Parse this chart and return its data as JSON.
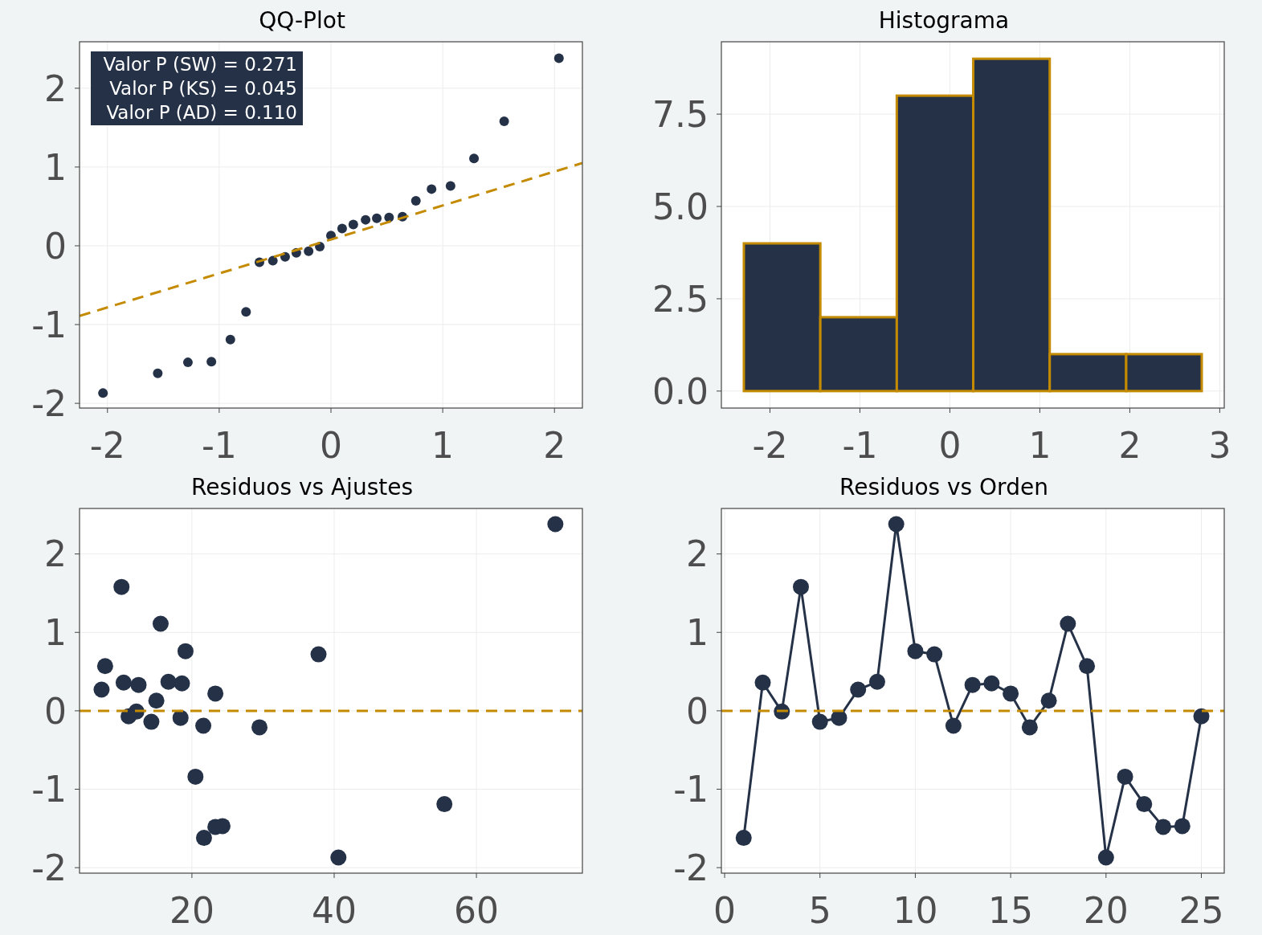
{
  "chart_data": [
    {
      "type": "scatter",
      "title": "QQ-Plot",
      "xlim": [
        -2.25,
        2.25
      ],
      "ylim": [
        -2.06,
        2.59
      ],
      "xticks": [
        -2,
        -1,
        0,
        1,
        2
      ],
      "yticks": [
        -2,
        -1,
        0,
        1,
        2
      ],
      "grid": true,
      "annotations": [
        "Valor P (SW) = 0.271",
        "Valor P (KS) = 0.045",
        "Valor P (AD) = 0.110"
      ],
      "series": [
        {
          "type": "scatter",
          "color": "#243147",
          "marker": "circle",
          "x": [
            -2.04,
            -1.55,
            -1.28,
            -1.07,
            -0.9,
            -0.76,
            -0.64,
            -0.52,
            -0.41,
            -0.31,
            -0.2,
            -0.1,
            0,
            0.1,
            0.2,
            0.31,
            0.41,
            0.52,
            0.64,
            0.76,
            0.9,
            1.07,
            1.28,
            1.55,
            2.04
          ],
          "values": [
            -1.87,
            -1.62,
            -1.48,
            -1.47,
            -1.19,
            -0.84,
            -0.21,
            -0.19,
            -0.14,
            -0.09,
            -0.07,
            -0.01,
            0.13,
            0.22,
            0.27,
            0.33,
            0.35,
            0.36,
            0.37,
            0.57,
            0.72,
            0.76,
            1.11,
            1.58,
            2.38
          ]
        },
        {
          "type": "line",
          "color": "#c48a00",
          "marker": "none",
          "line_style": "dashed",
          "x": [
            -2.25,
            2.25
          ],
          "values": [
            -0.89,
            1.05
          ]
        }
      ]
    },
    {
      "type": "histogram",
      "title": "Histograma",
      "xlim": [
        -2.54,
        3.05
      ],
      "ylim": [
        -0.46,
        9.46
      ],
      "xticks": [
        -2,
        -1,
        0,
        1,
        2,
        3
      ],
      "yticks": [
        {
          "value": 0,
          "label": "0.0"
        },
        {
          "value": 2.5,
          "label": "2.5"
        },
        {
          "value": 5,
          "label": "5.0"
        },
        {
          "value": 7.5,
          "label": "7.5"
        }
      ],
      "grid": true,
      "color": "#243147",
      "bins": [
        -2.29,
        -1.44,
        -0.59,
        0.26,
        1.11,
        1.96,
        2.8
      ],
      "values": [
        4,
        2,
        8,
        9,
        1,
        1
      ]
    },
    {
      "type": "scatter",
      "title": "Residuos vs Ajustes",
      "xlim": [
        4.2,
        74.9
      ],
      "ylim": [
        -2.07,
        2.58
      ],
      "xticks": [
        20,
        40,
        60
      ],
      "yticks": [
        -2,
        -1,
        0,
        1,
        2
      ],
      "grid": true,
      "marker": "circle",
      "color": "#243147",
      "x": [
        21.7,
        10.4,
        12.2,
        10.1,
        14.3,
        18.4,
        7.3,
        16.7,
        71.1,
        19.1,
        37.8,
        21.6,
        12.5,
        18.6,
        23.3,
        29.5,
        15.0,
        15.6,
        7.8,
        40.6,
        20.5,
        55.5,
        23.3,
        24.3,
        11.1
      ],
      "values": [
        -1.62,
        0.36,
        -0.01,
        1.58,
        -0.14,
        -0.09,
        0.27,
        0.37,
        2.38,
        0.76,
        0.72,
        -0.19,
        0.33,
        0.35,
        0.22,
        -0.21,
        0.13,
        1.11,
        0.57,
        -1.87,
        -0.84,
        -1.19,
        -1.48,
        -1.47,
        -0.07
      ],
      "ref_lines": [
        {
          "axis": "y",
          "value": 0,
          "color": "#c48a00",
          "line_style": "dashed"
        }
      ]
    },
    {
      "type": "line",
      "title": "Residuos vs Orden",
      "xlim": [
        -0.17,
        26.2
      ],
      "ylim": [
        -2.07,
        2.58
      ],
      "xticks": [
        0,
        5,
        10,
        15,
        20,
        25
      ],
      "yticks": [
        -2,
        -1,
        0,
        1,
        2
      ],
      "grid": true,
      "marker": "circle",
      "color": "#243147",
      "x": [
        1,
        2,
        3,
        4,
        5,
        6,
        7,
        8,
        9,
        10,
        11,
        12,
        13,
        14,
        15,
        16,
        17,
        18,
        19,
        20,
        21,
        22,
        23,
        24,
        25
      ],
      "values": [
        -1.62,
        0.36,
        -0.01,
        1.58,
        -0.14,
        -0.09,
        0.27,
        0.37,
        2.38,
        0.76,
        0.72,
        -0.19,
        0.33,
        0.35,
        0.22,
        -0.21,
        0.13,
        1.11,
        0.57,
        -1.87,
        -0.84,
        -1.19,
        -1.48,
        -1.47,
        -0.07
      ],
      "ref_lines": [
        {
          "axis": "y",
          "value": 0,
          "color": "#c48a00",
          "line_style": "dashed"
        }
      ]
    }
  ]
}
